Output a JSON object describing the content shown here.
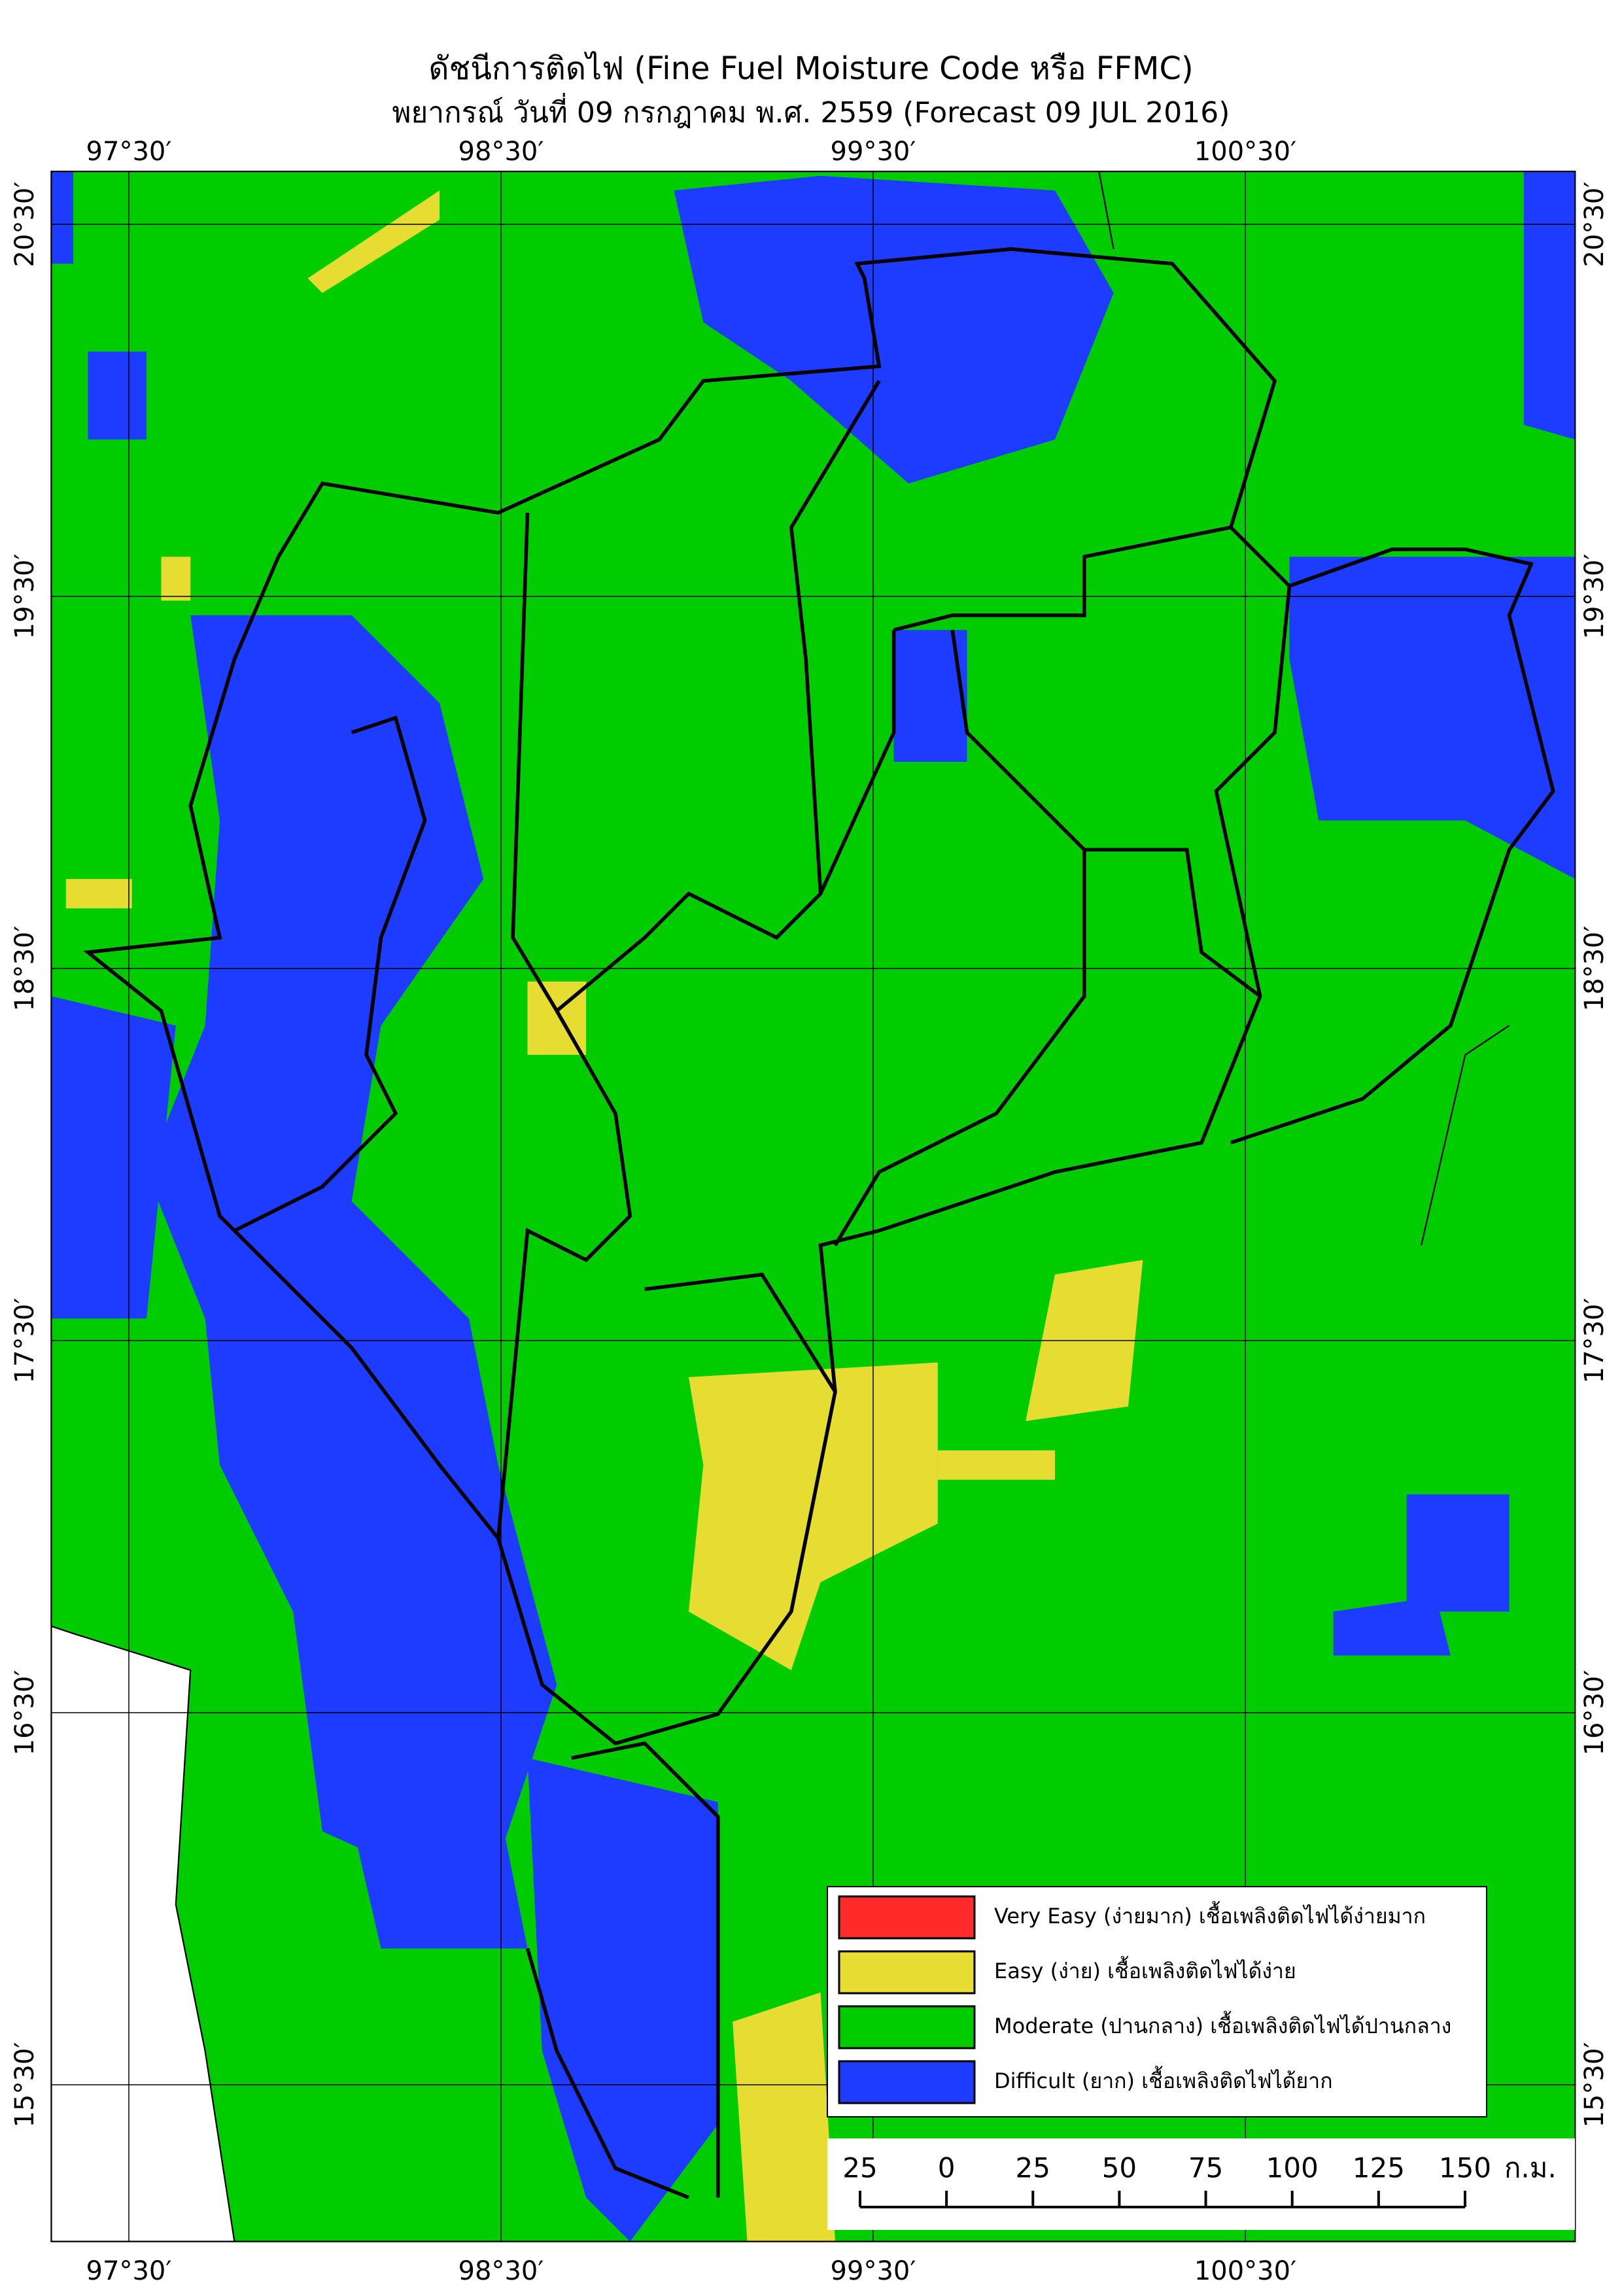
{
  "title": "ดัชนีการติดไฟ (Fine Fuel Moisture Code หรือ FFMC)",
  "subtitle": "พยากรณ์ วันที่ 09 กรกฎาคม พ.ศ. 2559 (Forecast 09 JUL 2016)",
  "lon_labels": [
    "97°30′",
    "98°30′",
    "99°30′",
    "100°30′"
  ],
  "lat_labels": [
    "20°30′",
    "19°30′",
    "18°30′",
    "17°30′",
    "16°30′",
    "15°30′"
  ],
  "legend": [
    {
      "label": "Very Easy (ง่ายมาก) เชื้อเพลิงติดไฟได้ง่ายมาก",
      "color": "#ff2a2a"
    },
    {
      "label": "Easy (ง่าย) เชื้อเพลิงติดไฟได้ง่าย",
      "color": "#e6dc32"
    },
    {
      "label": "Moderate (ปานกลาง) เชื้อเพลิงติดไฟได้ปานกลาง",
      "color": "#00cc00"
    },
    {
      "label": "Difficult (ยาก) เชื้อเพลิงติดไฟได้ยาก",
      "color": "#1e3cff"
    }
  ],
  "scale": {
    "ticks": [
      {
        "value": -25,
        "label": "25"
      },
      0,
      25,
      50,
      75,
      100,
      125,
      150
    ],
    "unit": "ก.ม."
  }
}
